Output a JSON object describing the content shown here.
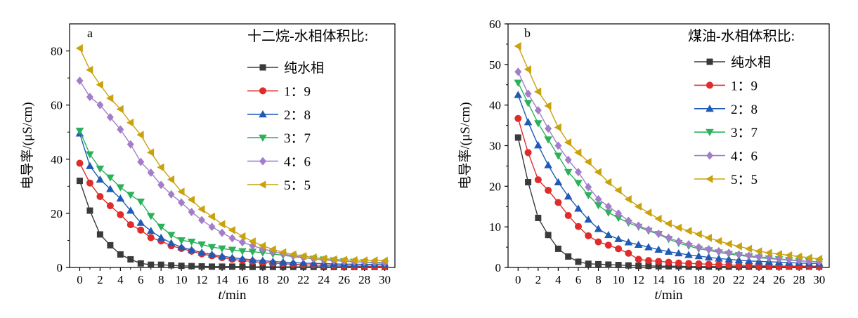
{
  "chart_data": [
    {
      "type": "line",
      "panel_label": "a",
      "legend_title": "十二烷-水相体积比:",
      "xlabel_italic": "t",
      "xlabel_unit": "/min",
      "ylabel": "电导率/(μS/cm)",
      "xlim": [
        -1,
        31
      ],
      "ylim": [
        0,
        90
      ],
      "xticks": [
        0,
        2,
        4,
        6,
        8,
        10,
        12,
        14,
        16,
        18,
        20,
        22,
        24,
        26,
        28,
        30
      ],
      "yticks": [
        0,
        20,
        40,
        60,
        80
      ],
      "legend_placement": "top-right",
      "x": [
        0,
        1,
        2,
        3,
        4,
        5,
        6,
        7,
        8,
        9,
        10,
        11,
        12,
        13,
        14,
        15,
        16,
        17,
        18,
        19,
        20,
        21,
        22,
        23,
        24,
        25,
        26,
        27,
        28,
        29,
        30
      ],
      "series": [
        {
          "name": "纯水相",
          "color": "#3a3a3a",
          "marker": "square",
          "values": [
            32,
            21,
            12.2,
            8.2,
            4.8,
            3.0,
            1.5,
            1.0,
            1.0,
            0.8,
            0.6,
            0.5,
            0.4,
            0.3,
            0.3,
            0.3,
            0.3,
            0.2,
            0.2,
            0.2,
            0.2,
            0.2,
            0.2,
            0.2,
            0.2,
            0.2,
            0.2,
            0.2,
            0.2,
            0.2,
            0.2
          ]
        },
        {
          "name": "1：9",
          "color": "#e02b2b",
          "marker": "circle",
          "values": [
            38.5,
            31.2,
            26.2,
            22.8,
            19.5,
            15.8,
            13.8,
            11.0,
            9.8,
            8.0,
            7.0,
            6.0,
            5.0,
            4.3,
            3.6,
            3.0,
            2.6,
            2.2,
            1.9,
            1.6,
            1.4,
            1.2,
            1.0,
            0.9,
            0.8,
            0.7,
            0.6,
            0.5,
            0.5,
            0.4,
            0.4
          ]
        },
        {
          "name": "2：8",
          "color": "#1f5bb5",
          "marker": "triangle-up",
          "values": [
            49.5,
            37.5,
            32.5,
            29.0,
            25.5,
            21.0,
            16.5,
            13.5,
            11.0,
            9.0,
            7.5,
            6.5,
            5.5,
            4.8,
            4.2,
            3.6,
            3.2,
            2.8,
            2.5,
            2.2,
            2.0,
            1.8,
            1.6,
            1.5,
            1.4,
            1.3,
            1.2,
            1.2,
            1.1,
            1.1,
            1.0
          ]
        },
        {
          "name": "3：7",
          "color": "#2bb15a",
          "marker": "triangle-down",
          "values": [
            50.5,
            41.8,
            36.5,
            33.2,
            29.6,
            26.8,
            24.3,
            19.0,
            15.0,
            12.0,
            10.0,
            9.5,
            8.5,
            7.5,
            7.0,
            6.5,
            6.0,
            5.8,
            5.5,
            5.0,
            4.5,
            4.0,
            3.6,
            3.2,
            2.9,
            2.6,
            2.3,
            2.1,
            1.9,
            1.7,
            1.5
          ]
        },
        {
          "name": "4：6",
          "color": "#a27ec8",
          "marker": "diamond",
          "values": [
            69,
            63,
            60,
            55.5,
            51,
            45.5,
            39,
            35,
            30.5,
            27,
            24,
            20.5,
            17.5,
            15,
            12.8,
            10.8,
            9.3,
            8.0,
            6.9,
            5.9,
            5.0,
            4.3,
            3.7,
            3.2,
            2.8,
            2.5,
            2.3,
            2.1,
            2.0,
            1.9,
            1.8
          ]
        },
        {
          "name": "5：5",
          "color": "#c9a20e",
          "marker": "triangle-left",
          "values": [
            81,
            73,
            67.5,
            62.5,
            58.5,
            53.5,
            49,
            42.5,
            37,
            32.5,
            28,
            25,
            21.5,
            18.8,
            16,
            13.8,
            11.5,
            9.6,
            8.0,
            6.7,
            5.6,
            4.8,
            4.2,
            3.7,
            3.3,
            3.0,
            2.8,
            2.7,
            2.6,
            2.6,
            2.5
          ]
        }
      ]
    },
    {
      "type": "line",
      "panel_label": "b",
      "legend_title": "煤油-水相体积比:",
      "xlabel_italic": "t",
      "xlabel_unit": "/min",
      "ylabel": "电导率/(μS/cm)",
      "xlim": [
        -1,
        31
      ],
      "ylim": [
        0,
        60
      ],
      "xticks": [
        0,
        2,
        4,
        6,
        8,
        10,
        12,
        14,
        16,
        18,
        20,
        22,
        24,
        26,
        28,
        30
      ],
      "yticks": [
        0,
        10,
        20,
        30,
        40,
        50,
        60
      ],
      "legend_placement": "top-right",
      "x": [
        0,
        1,
        2,
        3,
        4,
        5,
        6,
        7,
        8,
        9,
        10,
        11,
        12,
        13,
        14,
        15,
        16,
        17,
        18,
        19,
        20,
        21,
        22,
        23,
        24,
        25,
        26,
        27,
        28,
        29,
        30
      ],
      "series": [
        {
          "name": "纯水相",
          "color": "#3a3a3a",
          "marker": "square",
          "values": [
            32,
            21,
            12.2,
            8.0,
            4.6,
            2.7,
            1.4,
            0.9,
            0.8,
            0.7,
            0.6,
            0.5,
            0.4,
            0.4,
            0.3,
            0.3,
            0.3,
            0.2,
            0.2,
            0.2,
            0.2,
            0.2,
            0.2,
            0.2,
            0.2,
            0.2,
            0.2,
            0.2,
            0.2,
            0.2,
            0.2
          ]
        },
        {
          "name": "1：9",
          "color": "#e02b2b",
          "marker": "circle",
          "values": [
            36.7,
            28.3,
            21.6,
            19.0,
            16.0,
            12.8,
            10.1,
            7.8,
            6.3,
            5.5,
            4.6,
            3.5,
            2.0,
            1.7,
            1.5,
            1.3,
            1.1,
            1.0,
            0.9,
            0.8,
            0.7,
            0.6,
            0.5,
            0.5,
            0.4,
            0.4,
            0.3,
            0.3,
            0.3,
            0.3,
            0.3
          ]
        },
        {
          "name": "2：8",
          "color": "#1f5bb5",
          "marker": "triangle-up",
          "values": [
            42.5,
            35.8,
            30.1,
            25.2,
            21.0,
            17.5,
            14.5,
            11.8,
            9.5,
            8.0,
            7.0,
            6.2,
            5.6,
            5.0,
            4.4,
            3.9,
            3.5,
            3.1,
            2.8,
            2.5,
            2.2,
            2.0,
            1.8,
            1.6,
            1.5,
            1.4,
            1.3,
            1.2,
            1.1,
            1.0,
            1.0
          ]
        },
        {
          "name": "3：7",
          "color": "#2bb15a",
          "marker": "triangle-down",
          "values": [
            45.5,
            40.5,
            35.5,
            31.5,
            27.5,
            23.5,
            20.8,
            17.8,
            15.3,
            13.5,
            12.2,
            11.0,
            10.0,
            9.0,
            8.2,
            7.0,
            6.0,
            5.3,
            4.6,
            4.2,
            3.7,
            3.3,
            3.0,
            2.7,
            2.4,
            2.2,
            2.0,
            1.8,
            1.6,
            1.5,
            1.4
          ]
        },
        {
          "name": "4：6",
          "color": "#a27ec8",
          "marker": "diamond",
          "values": [
            48.2,
            42.8,
            38.7,
            34.2,
            30.0,
            26.5,
            23.5,
            19.8,
            16.8,
            15.0,
            13.3,
            11.5,
            10.3,
            9.3,
            8.3,
            7.3,
            6.4,
            5.7,
            5.0,
            4.5,
            4.0,
            3.6,
            3.2,
            2.9,
            2.6,
            2.4,
            2.1,
            1.9,
            1.7,
            1.5,
            1.4
          ]
        },
        {
          "name": "5：5",
          "color": "#c9a20e",
          "marker": "triangle-left",
          "values": [
            54.5,
            48.8,
            43.3,
            39.8,
            34.5,
            30.8,
            28.3,
            26.0,
            23.5,
            21.0,
            19.0,
            16.8,
            15.0,
            13.5,
            12.0,
            10.8,
            9.8,
            9.0,
            8.2,
            7.3,
            6.5,
            5.8,
            5.2,
            4.6,
            4.0,
            3.6,
            3.3,
            3.0,
            2.7,
            2.4,
            2.1
          ]
        }
      ]
    }
  ]
}
